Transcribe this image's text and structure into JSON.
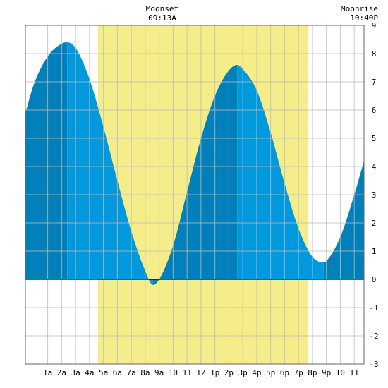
{
  "colors": {
    "background": "#ffffff",
    "daylight": "#f4ed8a",
    "tide_rising": "#0080bb",
    "tide_falling": "#0099dd",
    "grid": "#bbbbbb",
    "zero_line": "#000000",
    "frame": "#666666"
  },
  "top_labels": {
    "moonset": {
      "title": "Moonset",
      "time": "09:13A"
    },
    "moonrise": {
      "title": "Moonrise",
      "time": "10:40P"
    }
  },
  "chart_data": {
    "type": "area",
    "title": "",
    "xlabel": "",
    "ylabel": "",
    "x_unit": "hours after midnight",
    "xlim": [
      -0.6,
      23.7
    ],
    "ylim": [
      -3,
      9
    ],
    "x_tick_labels": [
      {
        "x": 1,
        "label": "1a"
      },
      {
        "x": 2,
        "label": "2a"
      },
      {
        "x": 3,
        "label": "3a"
      },
      {
        "x": 4,
        "label": "4a"
      },
      {
        "x": 5,
        "label": "5a"
      },
      {
        "x": 6,
        "label": "6a"
      },
      {
        "x": 7,
        "label": "7a"
      },
      {
        "x": 8,
        "label": "8a"
      },
      {
        "x": 9,
        "label": "9a"
      },
      {
        "x": 10,
        "label": "10"
      },
      {
        "x": 11,
        "label": "11"
      },
      {
        "x": 12,
        "label": "12"
      },
      {
        "x": 13,
        "label": "1p"
      },
      {
        "x": 14,
        "label": "2p"
      },
      {
        "x": 15,
        "label": "3p"
      },
      {
        "x": 16,
        "label": "4p"
      },
      {
        "x": 17,
        "label": "5p"
      },
      {
        "x": 18,
        "label": "6p"
      },
      {
        "x": 19,
        "label": "7p"
      },
      {
        "x": 20,
        "label": "8p"
      },
      {
        "x": 21,
        "label": "9p"
      },
      {
        "x": 22,
        "label": "10"
      },
      {
        "x": 23,
        "label": "11"
      }
    ],
    "y_ticks": [
      -3,
      -2,
      -1,
      0,
      1,
      2,
      3,
      4,
      5,
      6,
      7,
      8,
      9
    ],
    "daylight": {
      "start": 4.6,
      "end": 19.7
    },
    "moonset_x": 9.22,
    "moonrise_x": 22.67,
    "extremes": [
      {
        "type": "high",
        "x": 2.4,
        "y": 8.4
      },
      {
        "type": "low",
        "x": 8.55,
        "y": -0.2
      },
      {
        "type": "high",
        "x": 14.6,
        "y": 7.6
      },
      {
        "type": "low",
        "x": 20.8,
        "y": 0.6
      }
    ],
    "series": [
      {
        "x": [
          -0.6,
          0.0,
          1.0,
          2.0,
          2.4,
          3.0,
          4.0,
          5.0,
          6.0,
          7.0,
          8.0,
          8.55,
          9.0,
          10.0,
          11.0,
          12.0,
          13.0,
          14.0,
          14.6,
          15.0,
          16.0,
          17.0,
          18.0,
          19.0,
          20.0,
          20.8,
          21.0,
          22.0,
          23.0,
          23.7
        ],
        "y": [
          5.9,
          6.9,
          7.9,
          8.35,
          8.4,
          8.2,
          7.1,
          5.4,
          3.5,
          1.7,
          0.3,
          -0.2,
          0.0,
          1.2,
          3.1,
          5.0,
          6.5,
          7.4,
          7.6,
          7.45,
          6.7,
          5.2,
          3.4,
          1.8,
          0.8,
          0.6,
          0.65,
          1.5,
          3.0,
          4.2
        ]
      }
    ]
  }
}
